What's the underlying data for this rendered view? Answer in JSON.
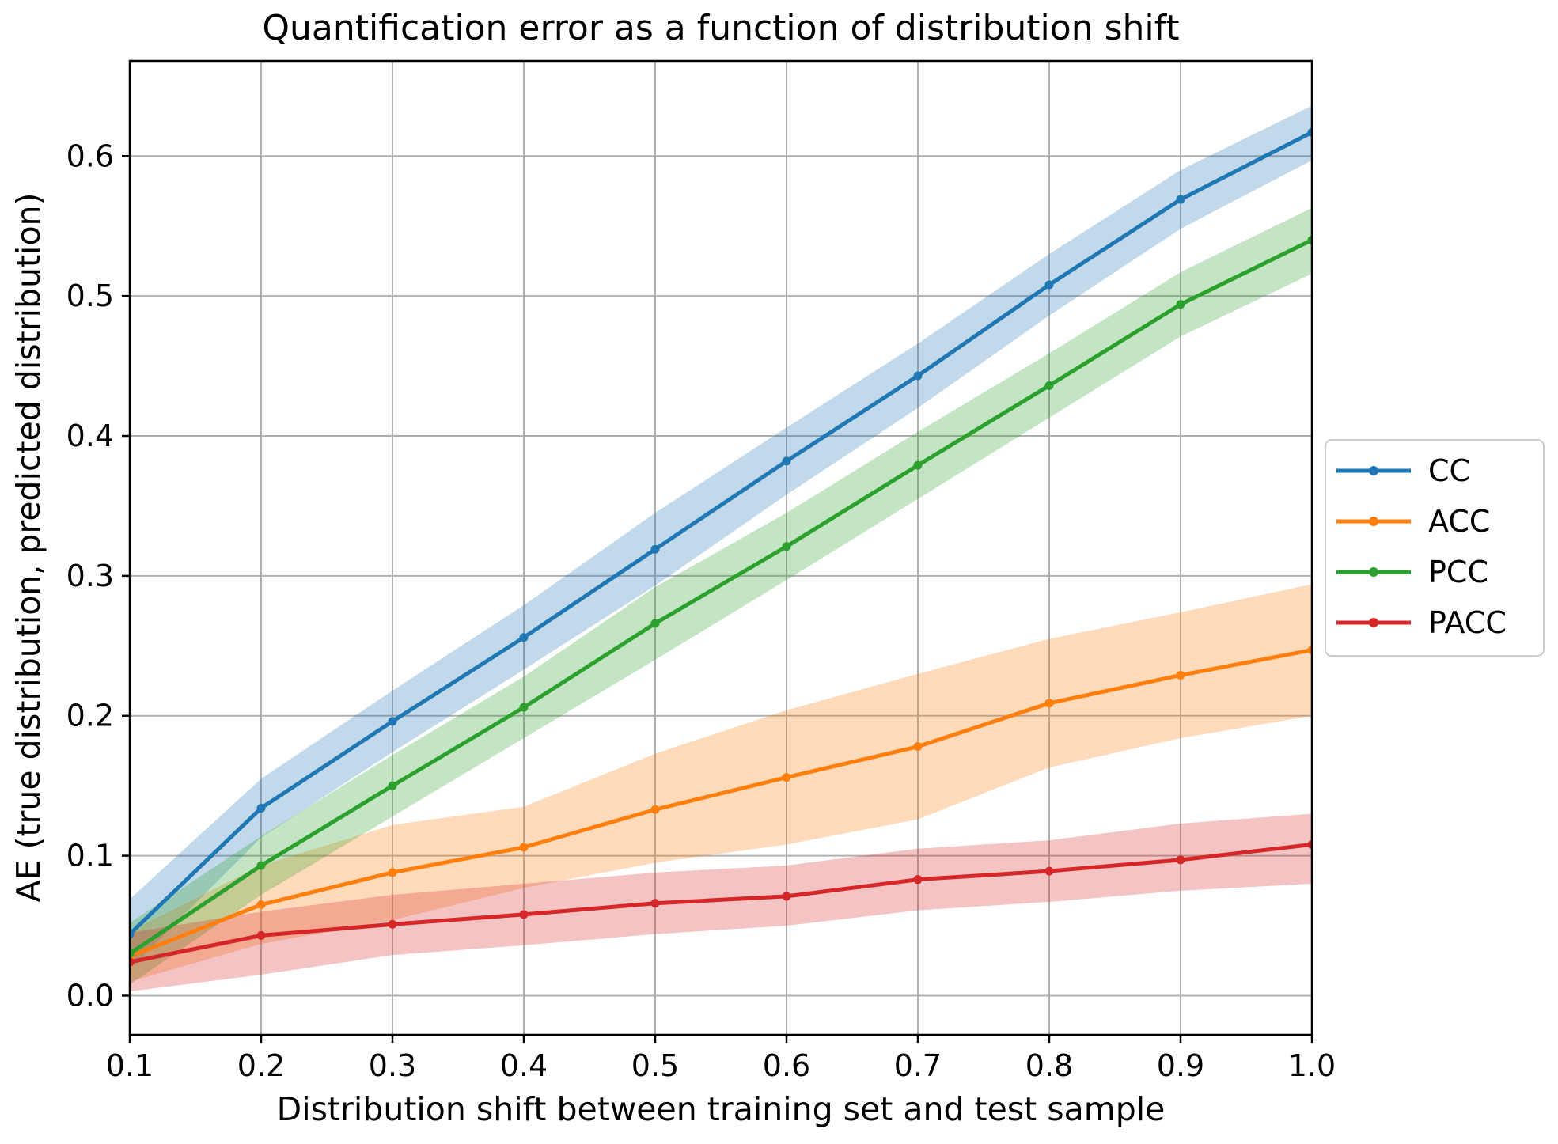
{
  "chart_data": {
    "type": "line",
    "title": "Quantification error as a function of distribution shift",
    "xlabel": "Distribution shift between training set and test sample",
    "ylabel": "AE (true distribution, predicted distribution)",
    "x": [
      0.1,
      0.2,
      0.3,
      0.4,
      0.5,
      0.6,
      0.7,
      0.8,
      0.9,
      1.0
    ],
    "xlim": [
      0.1,
      1.0
    ],
    "ylim": [
      -0.028,
      0.668
    ],
    "grid": true,
    "background": "#ffffff",
    "grid_color": "#b0b0b0",
    "axis_color": "#000000",
    "band_opacity": 0.28,
    "xticks": {
      "values": [
        0.1,
        0.2,
        0.3,
        0.4,
        0.5,
        0.6,
        0.7,
        0.8,
        0.9,
        1.0
      ],
      "labels": [
        "0.1",
        "0.2",
        "0.3",
        "0.4",
        "0.5",
        "0.6",
        "0.7",
        "0.8",
        "0.9",
        "1.0"
      ]
    },
    "yticks": {
      "values": [
        0.0,
        0.1,
        0.2,
        0.3,
        0.4,
        0.5,
        0.6
      ],
      "labels": [
        "0.0",
        "0.1",
        "0.2",
        "0.3",
        "0.4",
        "0.5",
        "0.6"
      ]
    },
    "legend": {
      "location": "outside-center-right",
      "border_color": "#cccccc",
      "fill": "#ffffff"
    },
    "series": [
      {
        "name": "CC",
        "color": "#1f77b4",
        "values": [
          0.044,
          0.134,
          0.196,
          0.256,
          0.319,
          0.382,
          0.443,
          0.508,
          0.569,
          0.617
        ],
        "band_lower": [
          0.019,
          0.113,
          0.174,
          0.233,
          0.293,
          0.358,
          0.42,
          0.486,
          0.548,
          0.597
        ],
        "band_upper": [
          0.069,
          0.155,
          0.218,
          0.279,
          0.345,
          0.406,
          0.466,
          0.53,
          0.59,
          0.636
        ]
      },
      {
        "name": "ACC",
        "color": "#ff7f0e",
        "values": [
          0.028,
          0.065,
          0.088,
          0.106,
          0.133,
          0.156,
          0.178,
          0.209,
          0.229,
          0.247
        ],
        "band_lower": [
          0.01,
          0.037,
          0.054,
          0.077,
          0.095,
          0.108,
          0.126,
          0.163,
          0.184,
          0.2
        ],
        "band_upper": [
          0.046,
          0.093,
          0.122,
          0.135,
          0.173,
          0.204,
          0.23,
          0.255,
          0.274,
          0.294
        ]
      },
      {
        "name": "PCC",
        "color": "#2ca02c",
        "values": [
          0.03,
          0.093,
          0.15,
          0.206,
          0.266,
          0.321,
          0.379,
          0.436,
          0.494,
          0.54
        ],
        "band_lower": [
          0.008,
          0.072,
          0.128,
          0.184,
          0.24,
          0.297,
          0.355,
          0.413,
          0.471,
          0.516
        ],
        "band_upper": [
          0.052,
          0.114,
          0.172,
          0.228,
          0.292,
          0.345,
          0.403,
          0.459,
          0.517,
          0.563
        ]
      },
      {
        "name": "PACC",
        "color": "#d62728",
        "values": [
          0.024,
          0.043,
          0.051,
          0.058,
          0.066,
          0.071,
          0.083,
          0.089,
          0.097,
          0.108
        ],
        "band_lower": [
          0.003,
          0.015,
          0.029,
          0.036,
          0.044,
          0.05,
          0.061,
          0.067,
          0.075,
          0.08
        ],
        "band_upper": [
          0.045,
          0.06,
          0.072,
          0.08,
          0.088,
          0.093,
          0.105,
          0.111,
          0.123,
          0.13
        ]
      }
    ]
  }
}
